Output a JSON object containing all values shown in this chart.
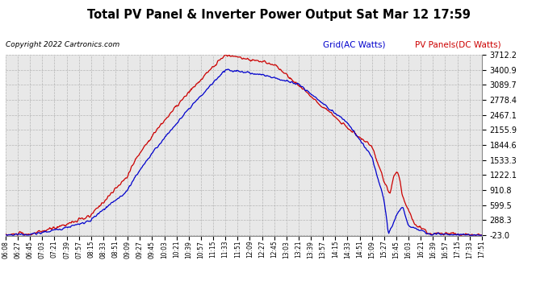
{
  "title": "Total PV Panel & Inverter Power Output Sat Mar 12 17:59",
  "copyright": "Copyright 2022 Cartronics.com",
  "legend_blue": "Grid(AC Watts)",
  "legend_red": "PV Panels(DC Watts)",
  "y_ticks": [
    -23.0,
    288.3,
    599.5,
    910.8,
    1222.1,
    1533.3,
    1844.6,
    2155.9,
    2467.1,
    2778.4,
    3089.7,
    3400.9,
    3712.2
  ],
  "y_min": -23.0,
  "y_max": 3712.2,
  "background_color": "#ffffff",
  "plot_bg_color": "#e8e8e8",
  "grid_color": "#aaaaaa",
  "blue_color": "#0000cc",
  "red_color": "#cc0000",
  "x_labels": [
    "06:08",
    "06:27",
    "06:45",
    "07:03",
    "07:21",
    "07:39",
    "07:57",
    "08:15",
    "08:33",
    "08:51",
    "09:09",
    "09:27",
    "09:45",
    "10:03",
    "10:21",
    "10:39",
    "10:57",
    "11:15",
    "11:33",
    "11:51",
    "12:09",
    "12:27",
    "12:45",
    "13:03",
    "13:21",
    "13:39",
    "13:57",
    "14:15",
    "14:33",
    "14:51",
    "15:09",
    "15:27",
    "15:45",
    "16:03",
    "16:21",
    "16:39",
    "16:57",
    "17:15",
    "17:33",
    "17:51"
  ]
}
